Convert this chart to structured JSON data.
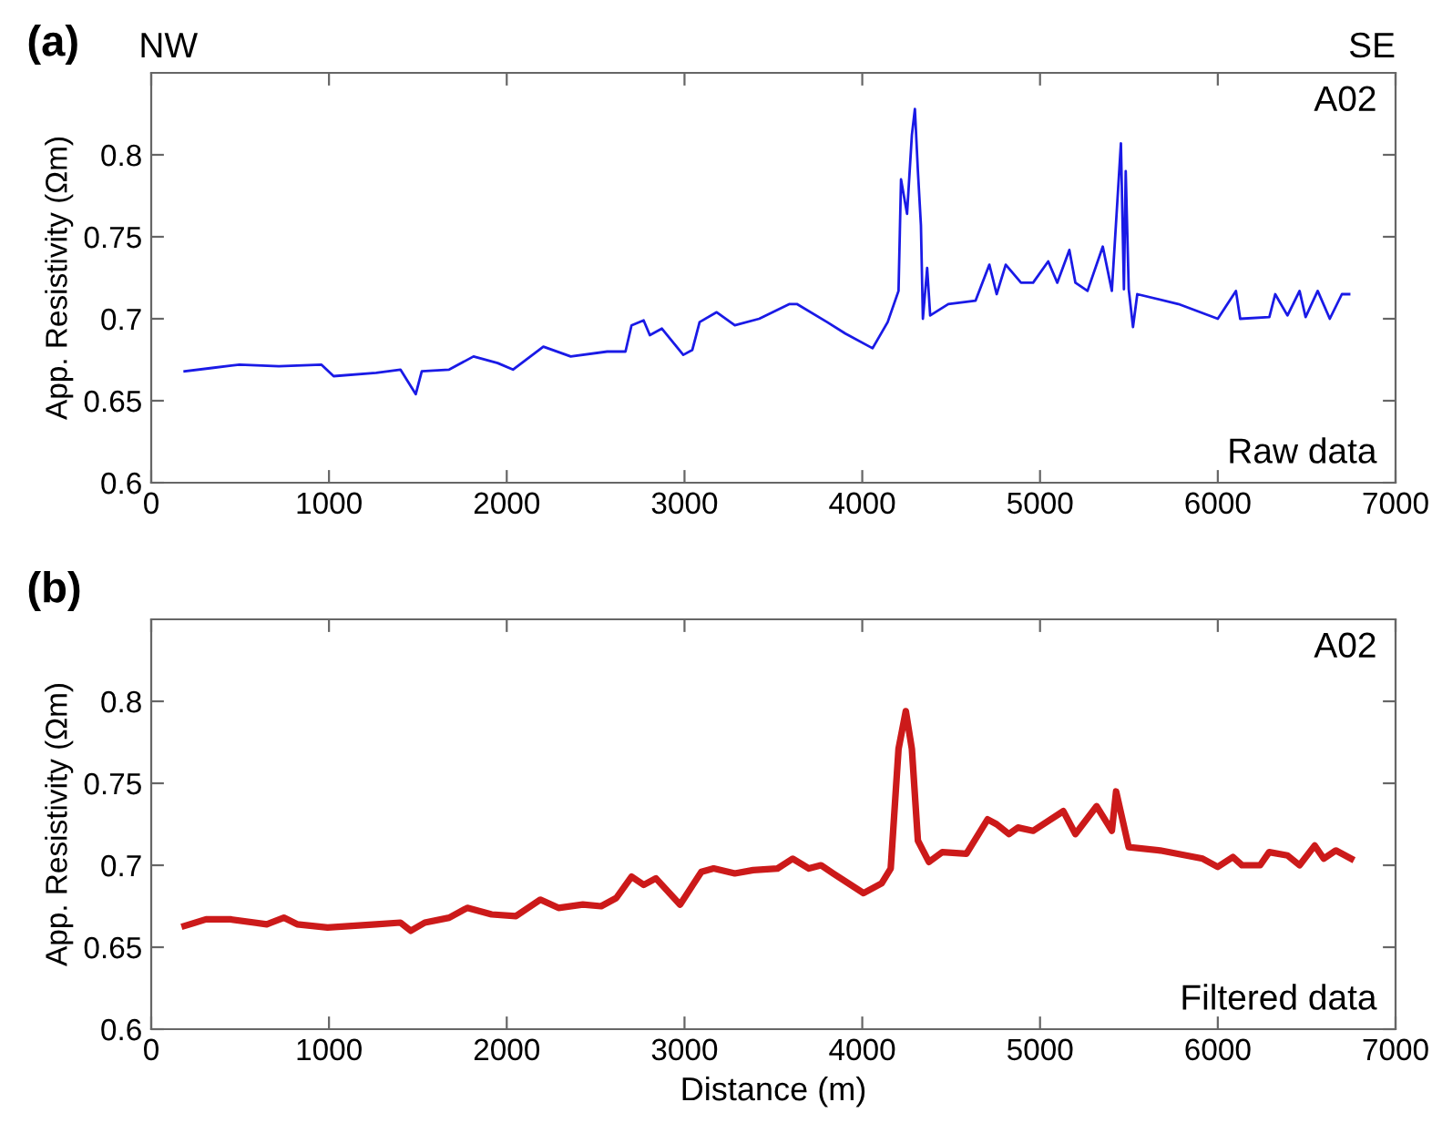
{
  "chart_data": [
    {
      "type": "line",
      "ylabel": "App. Resistivity (Ωm)",
      "xlim": [
        0,
        7000
      ],
      "ylim": [
        0.6,
        0.85
      ],
      "xticks": [
        0,
        1000,
        2000,
        3000,
        4000,
        5000,
        6000,
        7000
      ],
      "yticks": [
        0.6,
        0.65,
        0.7,
        0.75,
        0.8
      ],
      "grid": false,
      "marker": "none",
      "line_style": "solid",
      "annotations": [
        "(a)",
        "NW",
        "SE",
        "A02",
        "Raw data"
      ],
      "series": [
        {
          "color": "#1a1ae6",
          "x": [
            188,
            342,
            496,
            718,
            958,
            1026,
            1265,
            1402,
            1488,
            1522,
            1676,
            1813,
            1949,
            2035,
            2206,
            2360,
            2565,
            2668,
            2702,
            2770,
            2805,
            2873,
            2993,
            3044,
            3085,
            3181,
            3283,
            3420,
            3591,
            3632,
            3802,
            3905,
            4058,
            4143,
            4204,
            4218,
            4252,
            4279,
            4296,
            4313,
            4330,
            4341,
            4365,
            4382,
            4484,
            4637,
            4715,
            4756,
            4807,
            4893,
            4961,
            5046,
            5097,
            5165,
            5199,
            5267,
            5353,
            5404,
            5455,
            5472,
            5482,
            5499,
            5523,
            5547,
            5778,
            6000,
            6102,
            6126,
            6290,
            6323,
            6392,
            6460,
            6494,
            6562,
            6630,
            6698,
            6739
          ],
          "values": [
            0.668,
            0.67,
            0.672,
            0.671,
            0.672,
            0.665,
            0.667,
            0.669,
            0.654,
            0.668,
            0.669,
            0.677,
            0.673,
            0.669,
            0.683,
            0.677,
            0.68,
            0.68,
            0.696,
            0.699,
            0.69,
            0.694,
            0.678,
            0.681,
            0.698,
            0.704,
            0.696,
            0.7,
            0.709,
            0.709,
            0.698,
            0.691,
            0.682,
            0.698,
            0.717,
            0.785,
            0.764,
            0.812,
            0.828,
            0.79,
            0.757,
            0.7,
            0.731,
            0.702,
            0.709,
            0.711,
            0.733,
            0.715,
            0.733,
            0.722,
            0.722,
            0.735,
            0.722,
            0.742,
            0.722,
            0.717,
            0.744,
            0.717,
            0.807,
            0.718,
            0.79,
            0.718,
            0.695,
            0.715,
            0.709,
            0.7,
            0.717,
            0.7,
            0.701,
            0.715,
            0.702,
            0.717,
            0.701,
            0.717,
            0.7,
            0.715,
            0.715
          ]
        }
      ]
    },
    {
      "type": "line",
      "xlabel": "Distance (m)",
      "ylabel": "App. Resistivity (Ωm)",
      "xlim": [
        0,
        7000
      ],
      "ylim": [
        0.6,
        0.85
      ],
      "xticks": [
        0,
        1000,
        2000,
        3000,
        4000,
        5000,
        6000,
        7000
      ],
      "yticks": [
        0.6,
        0.65,
        0.7,
        0.75,
        0.8
      ],
      "grid": false,
      "marker": "none",
      "line_style": "solid",
      "annotations": [
        "(b)",
        "A02",
        "Filtered data"
      ],
      "series": [
        {
          "color": "#cc1a1a",
          "x": [
            188,
            308,
            445,
            650,
            746,
            821,
            992,
            1265,
            1402,
            1460,
            1539,
            1676,
            1778,
            1915,
            2052,
            2189,
            2291,
            2428,
            2531,
            2616,
            2702,
            2770,
            2839,
            2975,
            3095,
            3164,
            3283,
            3386,
            3523,
            3609,
            3700,
            3768,
            3836,
            4007,
            4109,
            4160,
            4204,
            4245,
            4279,
            4313,
            4375,
            4450,
            4586,
            4705,
            4756,
            4825,
            4876,
            4961,
            5131,
            5199,
            5318,
            5404,
            5428,
            5499,
            5676,
            5915,
            6000,
            6085,
            6136,
            6238,
            6289,
            6392,
            6460,
            6545,
            6596,
            6664,
            6750
          ],
          "values": [
            0.663,
            0.667,
            0.667,
            0.664,
            0.668,
            0.664,
            0.662,
            0.664,
            0.665,
            0.66,
            0.665,
            0.668,
            0.674,
            0.67,
            0.669,
            0.679,
            0.674,
            0.676,
            0.675,
            0.68,
            0.693,
            0.688,
            0.692,
            0.676,
            0.696,
            0.698,
            0.695,
            0.697,
            0.698,
            0.704,
            0.698,
            0.7,
            0.695,
            0.683,
            0.689,
            0.698,
            0.771,
            0.794,
            0.771,
            0.715,
            0.702,
            0.708,
            0.707,
            0.728,
            0.725,
            0.719,
            0.723,
            0.721,
            0.733,
            0.719,
            0.736,
            0.721,
            0.745,
            0.711,
            0.709,
            0.704,
            0.699,
            0.705,
            0.7,
            0.7,
            0.708,
            0.706,
            0.7,
            0.712,
            0.704,
            0.709,
            0.704
          ]
        }
      ]
    }
  ]
}
